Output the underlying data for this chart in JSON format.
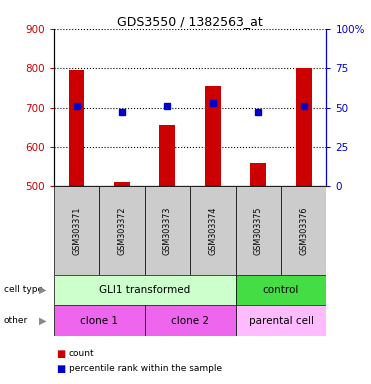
{
  "title": "GDS3550 / 1382563_at",
  "samples": [
    "GSM303371",
    "GSM303372",
    "GSM303373",
    "GSM303374",
    "GSM303375",
    "GSM303376"
  ],
  "counts": [
    795,
    510,
    655,
    755,
    560,
    800
  ],
  "percentiles": [
    51,
    47,
    51,
    53,
    47,
    51
  ],
  "ylim_left": [
    500,
    900
  ],
  "ylim_right": [
    0,
    100
  ],
  "yticks_left": [
    500,
    600,
    700,
    800,
    900
  ],
  "yticks_right": [
    0,
    25,
    50,
    75,
    100
  ],
  "bar_color": "#cc0000",
  "dot_color": "#0000cc",
  "cell_type_labels": [
    "GLI1 transformed",
    "control"
  ],
  "cell_type_color_gli": "#ccffcc",
  "cell_type_color_ctrl": "#44dd44",
  "other_labels": [
    "clone 1",
    "clone 2",
    "parental cell"
  ],
  "other_color_clone": "#ee66ee",
  "other_color_parental": "#ffbbff",
  "legend_count_color": "#cc0000",
  "legend_pct_color": "#0000cc",
  "sample_box_color": "#cccccc",
  "grid_color": "black"
}
